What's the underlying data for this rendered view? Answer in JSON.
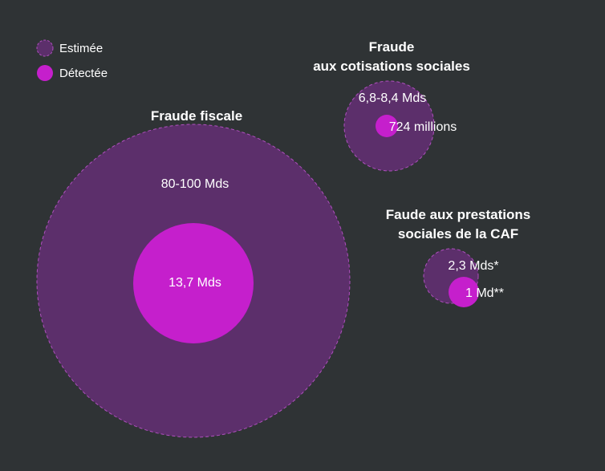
{
  "chart_data": {
    "type": "bubble",
    "legend": [
      {
        "label": "Estimée",
        "color": "#5c2f6b",
        "style": "dashed-outline"
      },
      {
        "label": "Détectée",
        "color": "#c51fcc",
        "style": "solid"
      }
    ],
    "groups": [
      {
        "id": "fiscale",
        "title_lines": [
          "Fraude fiscale"
        ],
        "estimated": {
          "label": "80-100 Mds",
          "value_low": 80000,
          "value_high": 100000
        },
        "detected": {
          "label": "13,7 Mds",
          "value": 13700
        }
      },
      {
        "id": "cotisations",
        "title_lines": [
          "Fraude",
          "aux cotisations sociales"
        ],
        "estimated": {
          "label": "6,8-8,4 Mds",
          "value_low": 6800,
          "value_high": 8400
        },
        "detected": {
          "label": "724 millions",
          "value": 724
        }
      },
      {
        "id": "caf",
        "title_lines": [
          "Faude aux prestations",
          "sociales de la CAF"
        ],
        "estimated": {
          "label": "2,3 Mds*",
          "value": 2300
        },
        "detected": {
          "label": "1 Md**",
          "value": 1000
        }
      }
    ],
    "unit": "millions €"
  },
  "colors": {
    "background": "#2f3335",
    "estimated_fill": "#5c2f6b",
    "estimated_stroke": "#b04fbf",
    "detected_fill": "#c51fcc"
  }
}
